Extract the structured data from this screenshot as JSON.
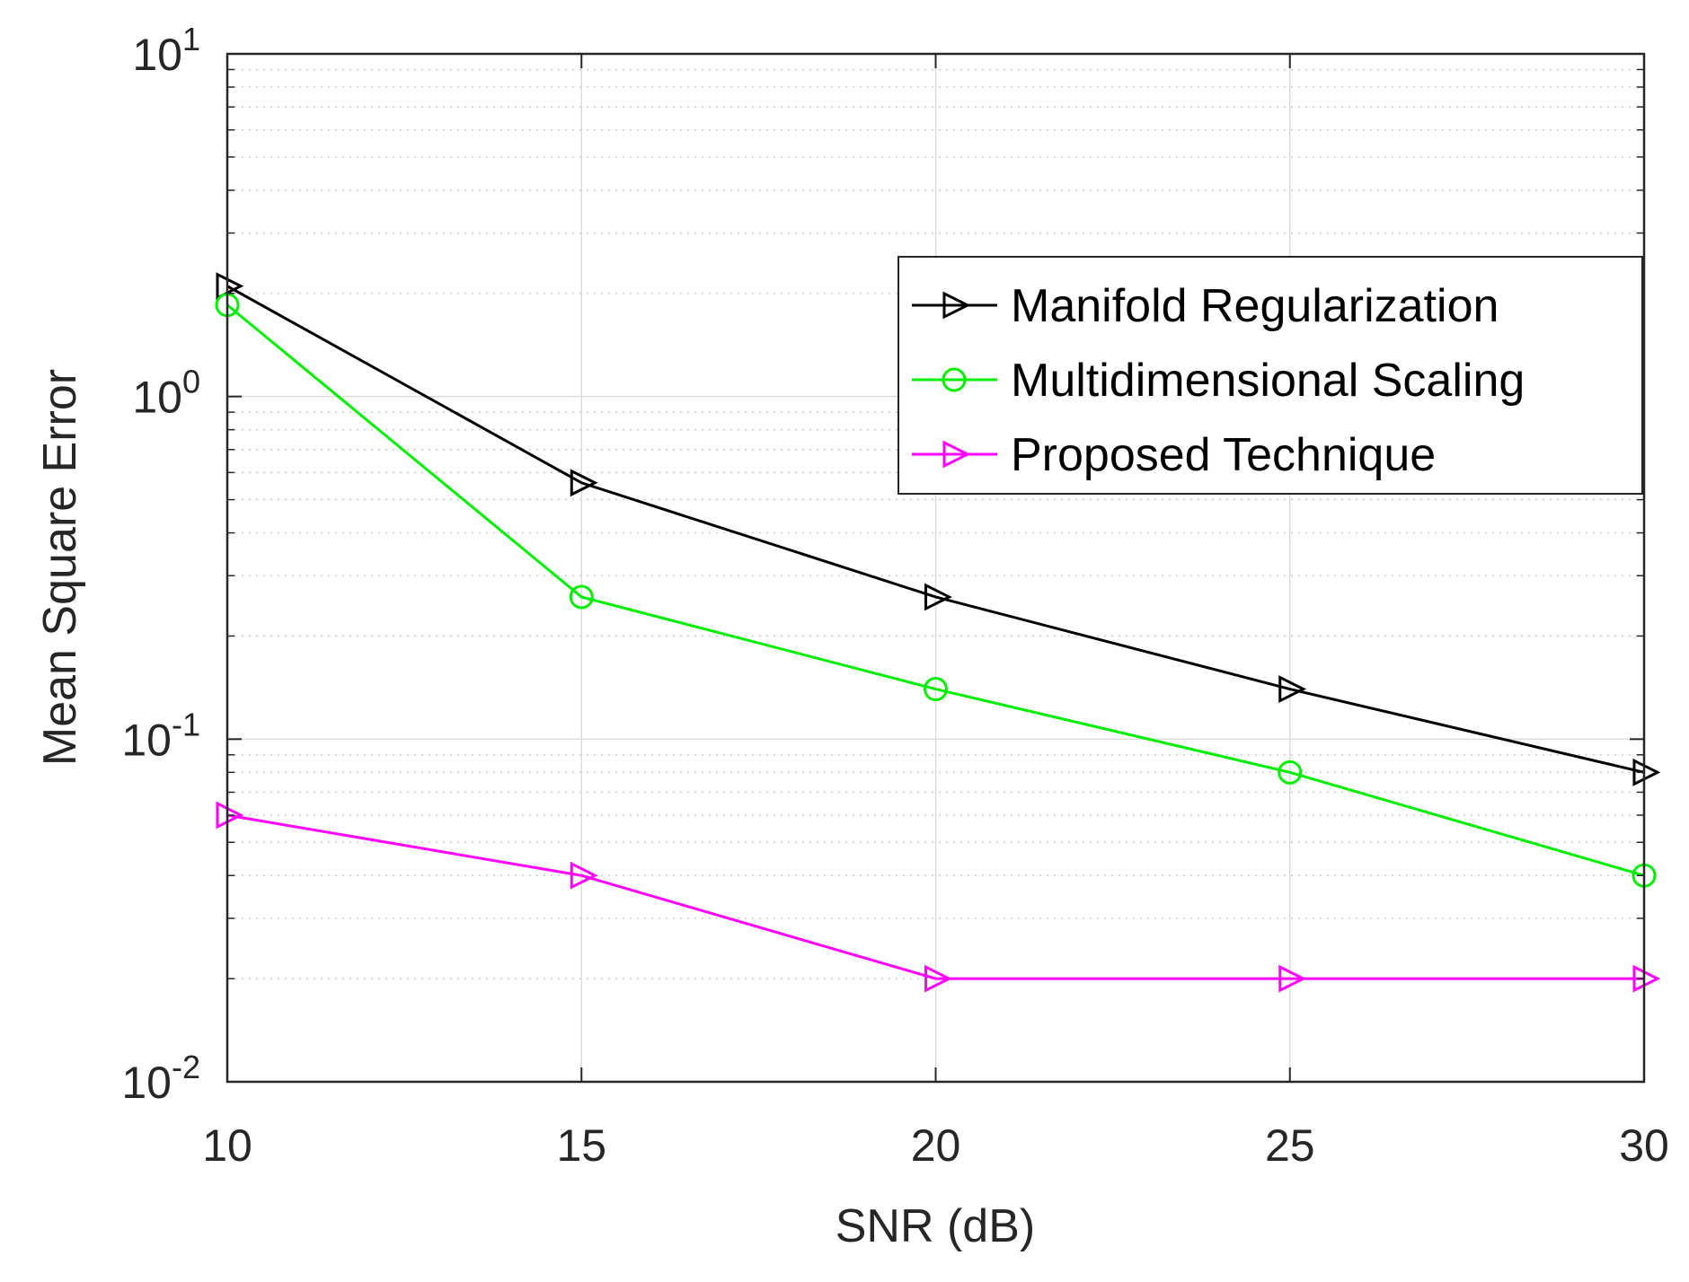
{
  "chart_data": {
    "type": "line",
    "title": "",
    "xlabel": "SNR (dB)",
    "ylabel": "Mean Square Error",
    "x": [
      10,
      15,
      20,
      25,
      30
    ],
    "xlim": [
      10,
      30
    ],
    "xticks": [
      10,
      15,
      20,
      25,
      30
    ],
    "yscale": "log",
    "ylim": [
      0.01,
      10
    ],
    "yticks": [
      {
        "base": "10",
        "exp": "-2",
        "value": 0.01
      },
      {
        "base": "10",
        "exp": "-1",
        "value": 0.1
      },
      {
        "base": "10",
        "exp": "0",
        "value": 1
      },
      {
        "base": "10",
        "exp": "1",
        "value": 10
      }
    ],
    "grid": true,
    "legend_position": "top-right",
    "series": [
      {
        "name": "Manifold Regularization",
        "color": "#000000",
        "marker": "triangle-right",
        "values": [
          2.1,
          0.56,
          0.26,
          0.14,
          0.08
        ]
      },
      {
        "name": "Multidimensional Scaling",
        "color": "#00ee00",
        "marker": "circle",
        "values": [
          1.85,
          0.26,
          0.14,
          0.08,
          0.04
        ]
      },
      {
        "name": "Proposed Technique",
        "color": "#ff00ff",
        "marker": "triangle-right",
        "values": [
          0.06,
          0.04,
          0.02,
          0.02,
          0.02
        ]
      }
    ]
  }
}
